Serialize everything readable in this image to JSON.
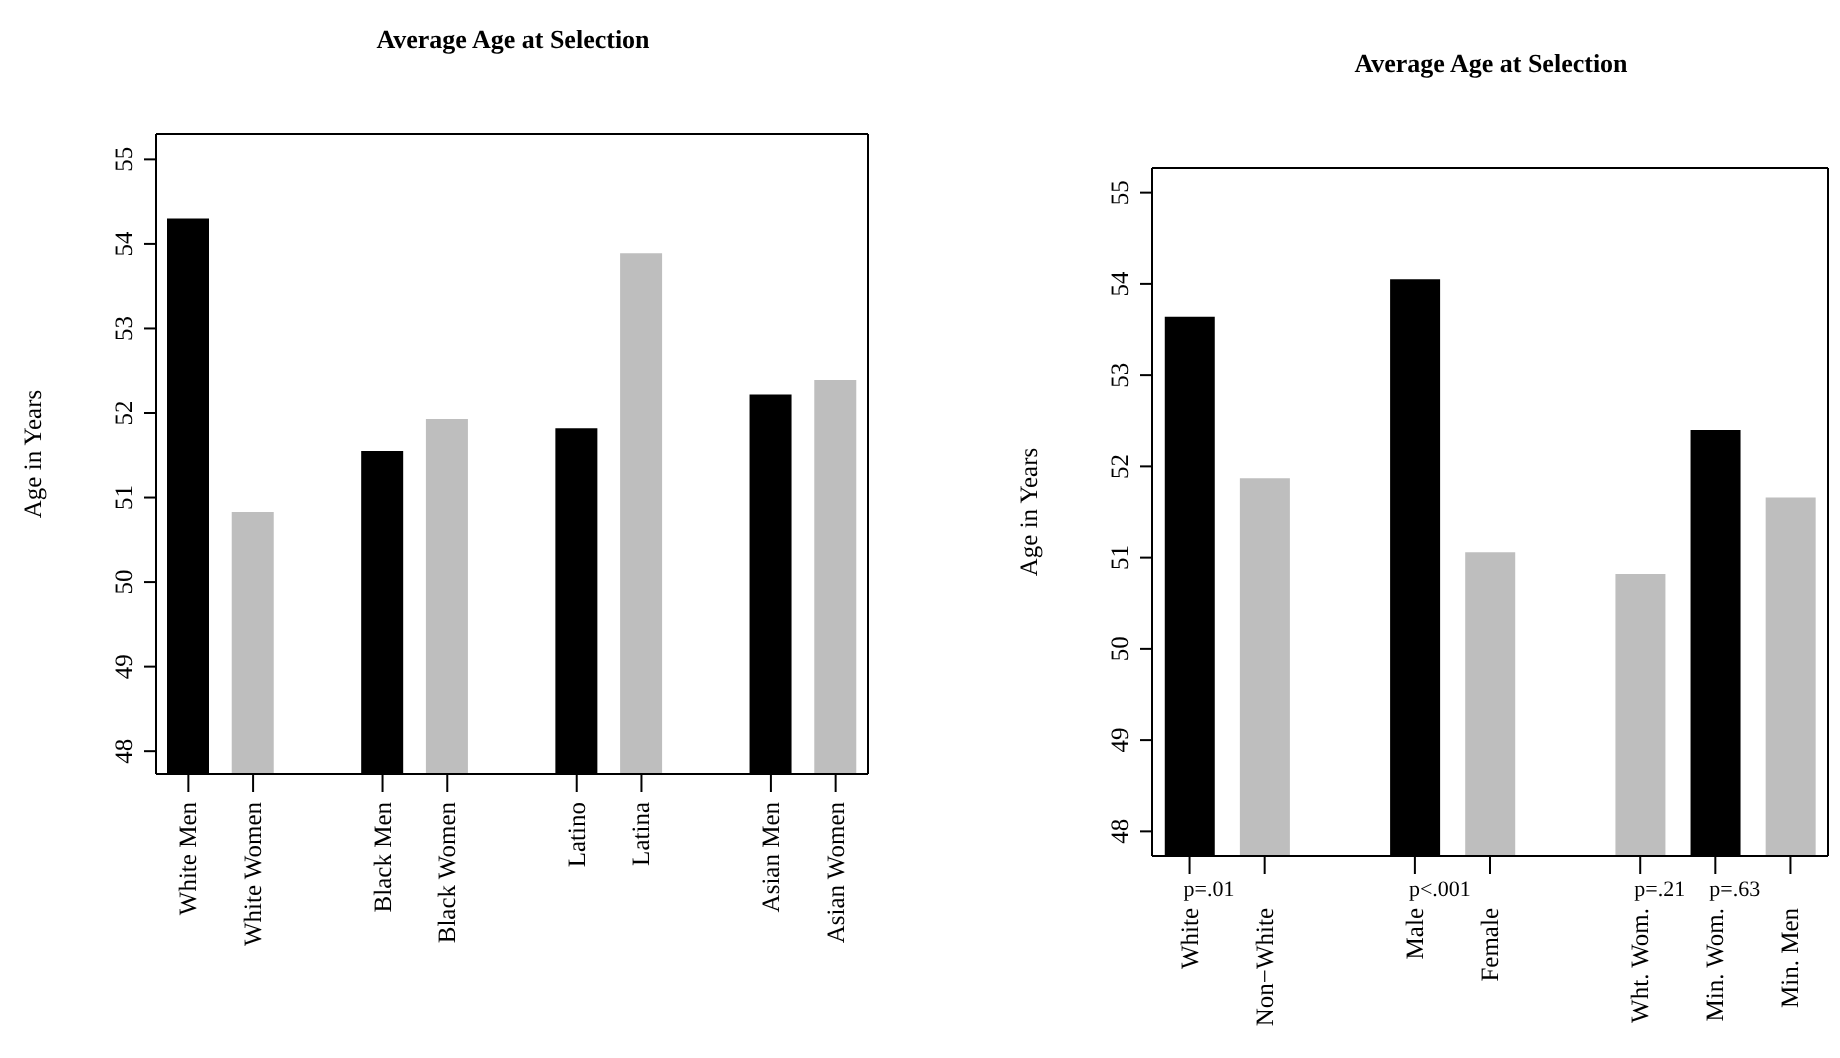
{
  "chart_data": [
    {
      "type": "bar",
      "title": "Average Age at Selection",
      "ylabel": "Age in Years",
      "categories": [
        "White Men",
        "White Women",
        null,
        "Black Men",
        "Black Women",
        null,
        "Latino",
        "Latina",
        null,
        "Asian Men",
        "Asian Women"
      ],
      "values": [
        54.3,
        50.83,
        null,
        51.55,
        51.93,
        null,
        51.82,
        53.89,
        null,
        52.22,
        52.39
      ],
      "colors": [
        "#000000",
        "#bebebe",
        null,
        "#000000",
        "#bebebe",
        null,
        "#000000",
        "#bebebe",
        null,
        "#000000",
        "#bebebe"
      ],
      "ylim": [
        47.73,
        55.3
      ],
      "yticks": [
        48,
        49,
        50,
        51,
        52,
        53,
        54,
        55
      ]
    },
    {
      "type": "bar",
      "title": "Average Age at Selection",
      "ylabel": "Age in Years",
      "categories": [
        "White",
        "Non−White",
        null,
        "Male",
        "Female",
        null,
        "Wht. Wom.",
        "Min. Wom.",
        "Min. Men"
      ],
      "values": [
        53.64,
        51.87,
        null,
        54.05,
        51.06,
        null,
        50.82,
        52.4,
        51.66
      ],
      "colors": [
        "#000000",
        "#bebebe",
        null,
        "#000000",
        "#bebebe",
        null,
        "#bebebe",
        "#000000",
        "#bebebe"
      ],
      "ylim": [
        47.73,
        55.27
      ],
      "yticks": [
        48,
        49,
        50,
        51,
        52,
        53,
        54,
        55
      ],
      "annotations": [
        "p=.01",
        "p<.001",
        "p=.21",
        "p=.63"
      ]
    }
  ]
}
